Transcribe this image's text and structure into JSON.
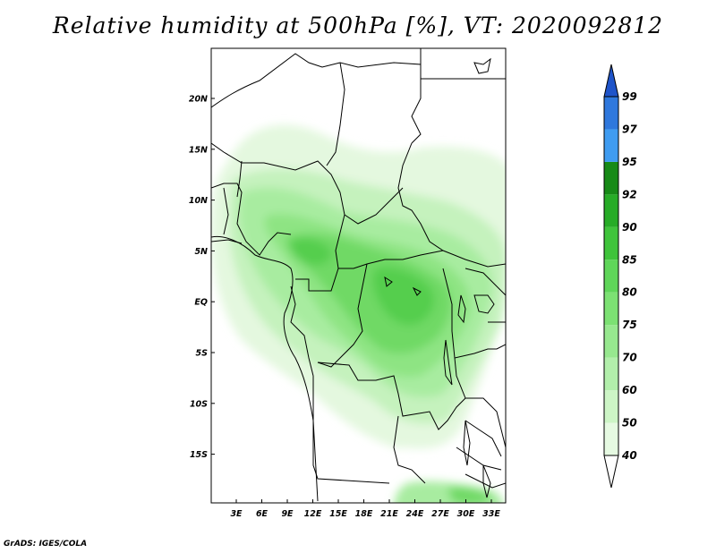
{
  "title": "Relative humidity at 500hPa [%], VT: 2020092812",
  "credit": "GrADS: IGES/COLA",
  "map": {
    "lat_labels": [
      "20N",
      "15N",
      "10N",
      "5N",
      "EQ",
      "5S",
      "10S",
      "15S"
    ],
    "lon_labels": [
      "3E",
      "6E",
      "9E",
      "12E",
      "15E",
      "18E",
      "21E",
      "24E",
      "27E",
      "30E",
      "33E"
    ]
  },
  "colorbar": {
    "levels": [
      "40",
      "50",
      "60",
      "70",
      "75",
      "80",
      "85",
      "90",
      "92",
      "95",
      "97",
      "99"
    ],
    "colors": [
      "#ffffff",
      "#e6fae2",
      "#cdf5c6",
      "#b2efab",
      "#97e88f",
      "#7ce173",
      "#5fd659",
      "#3fc43b",
      "#27ac27",
      "#178a17",
      "#3f9cf1",
      "#2f78dd",
      "#1f54c9"
    ]
  }
}
